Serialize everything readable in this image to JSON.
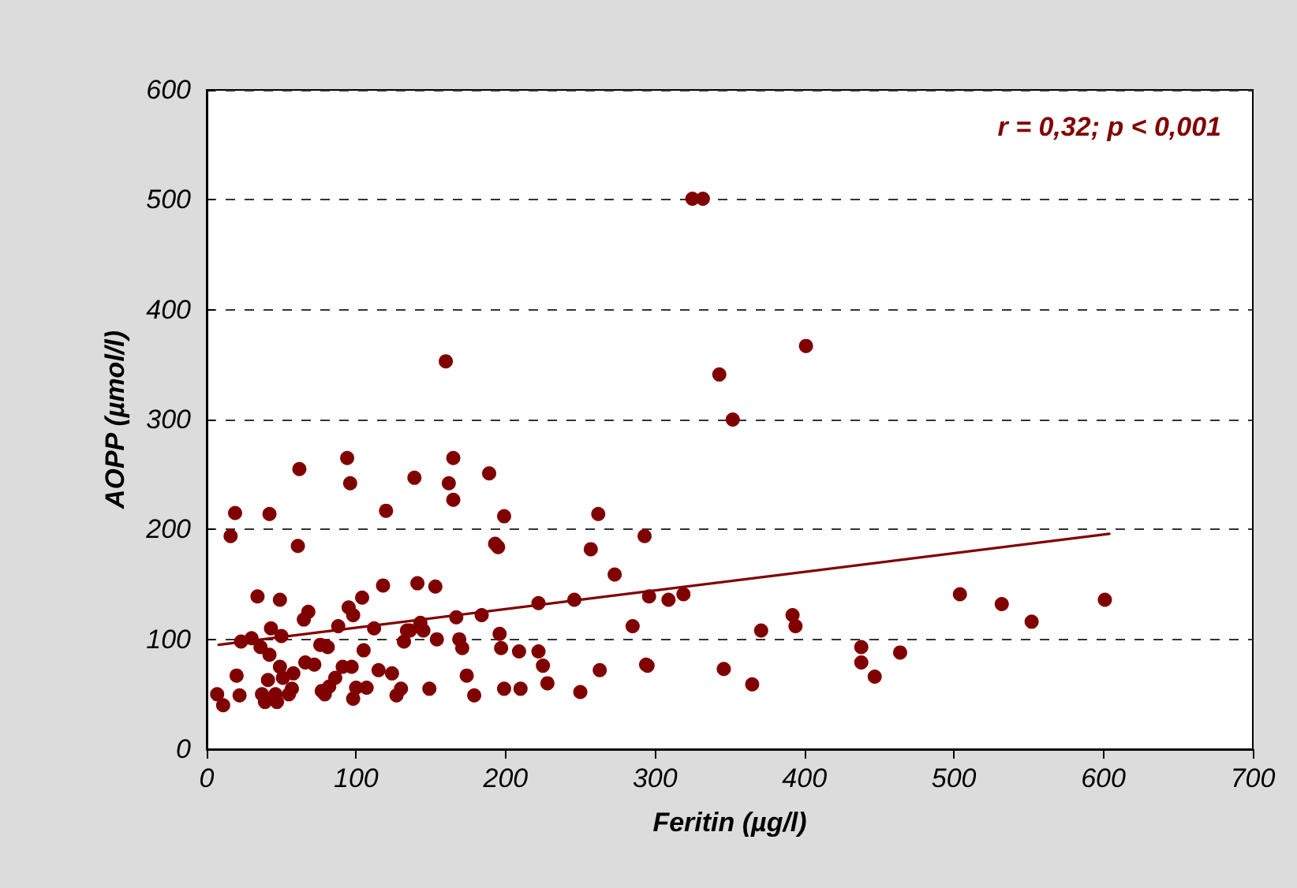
{
  "chart_data": {
    "type": "scatter",
    "xlabel": "Feritin (µg/l)",
    "ylabel": "AOPP (µmol/l)",
    "annotations": [
      "r = 0,32; p < 0,001"
    ],
    "xlim": [
      0,
      700
    ],
    "xticks": [
      0,
      100,
      200,
      300,
      400,
      500,
      600,
      700
    ],
    "ylim": [
      0,
      600
    ],
    "yticks": [
      0,
      100,
      200,
      300,
      400,
      500,
      600
    ],
    "grid": "y",
    "marker": "circle",
    "series": [
      {
        "color": "#800000",
        "x": [
          7,
          11,
          16,
          19,
          20,
          22,
          23,
          30,
          34,
          36,
          37,
          39,
          41,
          42,
          42,
          43,
          46,
          47,
          49,
          49,
          50,
          51,
          55,
          57,
          58,
          61,
          62,
          65,
          66,
          68,
          72,
          76,
          77,
          79,
          81,
          82,
          86,
          88,
          91,
          94,
          96,
          95,
          97,
          98,
          98,
          100,
          104,
          105,
          107,
          112,
          115,
          118,
          120,
          124,
          127,
          130,
          132,
          134,
          136,
          139,
          141,
          143,
          145,
          149,
          153,
          154,
          160,
          162,
          165,
          165,
          167,
          169,
          171,
          174,
          179,
          184,
          189,
          193,
          195,
          196,
          197,
          199,
          199,
          209,
          210,
          222,
          222,
          225,
          228,
          246,
          250,
          257,
          262,
          263,
          273,
          285,
          293,
          294,
          295,
          296,
          309,
          319,
          325,
          332,
          343,
          346,
          352,
          365,
          371,
          401,
          392,
          394,
          438,
          438,
          447,
          464,
          504,
          532,
          552,
          601
        ],
        "values": [
          50,
          40,
          194,
          215,
          67,
          49,
          98,
          101,
          139,
          93,
          50,
          43,
          63,
          214,
          86,
          110,
          50,
          43,
          136,
          75,
          103,
          65,
          50,
          55,
          69,
          185,
          255,
          118,
          79,
          125,
          77,
          95,
          53,
          50,
          93,
          57,
          65,
          112,
          75,
          265,
          242,
          129,
          75,
          122,
          46,
          56,
          138,
          90,
          56,
          110,
          72,
          149,
          217,
          69,
          49,
          55,
          98,
          108,
          108,
          247,
          151,
          115,
          108,
          55,
          148,
          100,
          353,
          242,
          265,
          227,
          120,
          100,
          92,
          67,
          49,
          122,
          251,
          187,
          184,
          105,
          92,
          212,
          55,
          89,
          55,
          133,
          89,
          76,
          60,
          136,
          52,
          182,
          214,
          72,
          159,
          112,
          194,
          77,
          76,
          139,
          136,
          141,
          501,
          501,
          341,
          73,
          300,
          59,
          108,
          367,
          122,
          112,
          93,
          79,
          66,
          88,
          141,
          132,
          116,
          136
        ]
      },
      {
        "type": "line",
        "color": "#800000",
        "marker": "none",
        "x": [
          8,
          604
        ],
        "values": [
          95,
          196
        ]
      }
    ]
  }
}
